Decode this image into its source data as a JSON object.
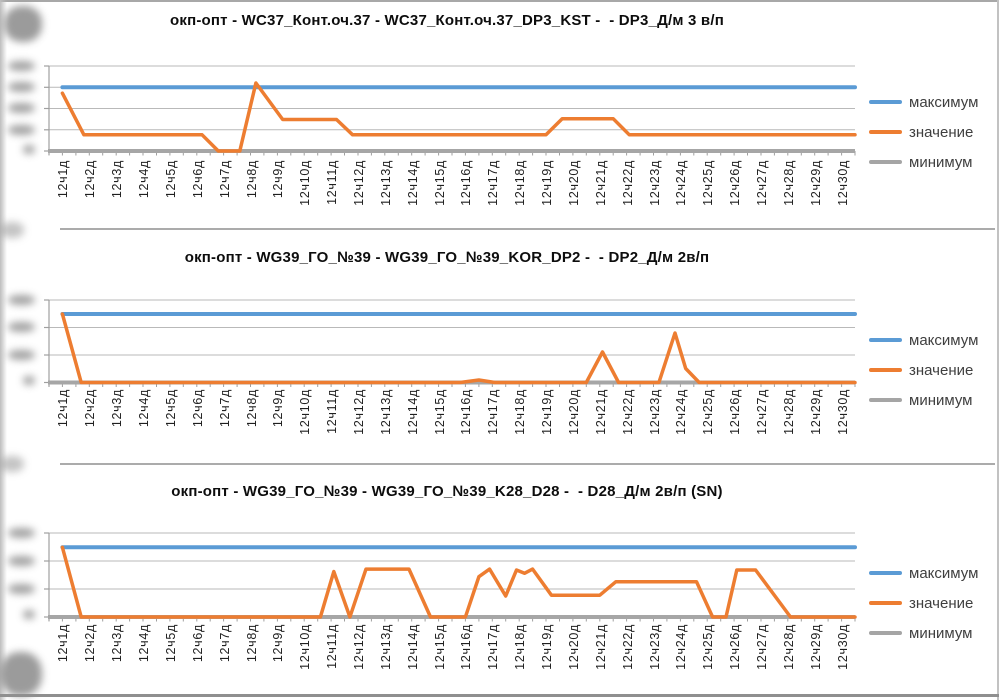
{
  "chart_data": [
    {
      "type": "line",
      "title": "окп-опт - WC37_Конт.оч.37 - WC37_Конт.оч.37_DP3_KST -  - DP3_Д/м 3 в/п",
      "categories": [
        "12ч1д",
        "12ч2д",
        "12ч3д",
        "12ч4д",
        "12ч5д",
        "12ч6д",
        "12ч7д",
        "12ч8д",
        "12ч9д",
        "12ч10д",
        "12ч11д",
        "12ч12д",
        "12ч13д",
        "12ч14д",
        "12ч15д",
        "12ч16д",
        "12ч17д",
        "12ч18д",
        "12ч19д",
        "12ч20д",
        "12ч21д",
        "12ч22д",
        "12ч23д",
        "12ч24д",
        "12ч25д",
        "12ч26д",
        "12ч27д",
        "12ч28д",
        "12ч29д",
        "12ч30д"
      ],
      "x_unit": "category index (12чNд)",
      "ylim": [
        0,
        100
      ],
      "y_tick_labels": "blurred/illegible in screenshot",
      "gridlines": 5,
      "legend_position": "right",
      "series": [
        {
          "name": "максимум",
          "color": "#5B9BD5",
          "points": [
            [
              1,
              75
            ],
            [
              30,
              75
            ]
          ]
        },
        {
          "name": "значение",
          "color": "#ED7D31",
          "points": [
            [
              1,
              68
            ],
            [
              1.8,
              19
            ],
            [
              6.2,
              19
            ],
            [
              6.8,
              0
            ],
            [
              7.6,
              0
            ],
            [
              8.2,
              80
            ],
            [
              9.2,
              37
            ],
            [
              11.2,
              37
            ],
            [
              11.8,
              19
            ],
            [
              19,
              19
            ],
            [
              19.6,
              38
            ],
            [
              21.5,
              38
            ],
            [
              22.1,
              19
            ],
            [
              30,
              19
            ]
          ]
        },
        {
          "name": "минимум",
          "color": "#A5A5A5",
          "points": [
            [
              1,
              0
            ],
            [
              30,
              0
            ]
          ]
        }
      ]
    },
    {
      "type": "line",
      "title": "окп-опт - WG39_ГО_№39 - WG39_ГО_№39_KOR_DP2 -  - DP2_Д/м 2в/п",
      "categories": [
        "12ч1д",
        "12ч2д",
        "12ч3д",
        "12ч4д",
        "12ч5д",
        "12ч6д",
        "12ч7д",
        "12ч8д",
        "12ч9д",
        "12ч10д",
        "12ч11д",
        "12ч12д",
        "12ч13д",
        "12ч14д",
        "12ч15д",
        "12ч16д",
        "12ч17д",
        "12ч18д",
        "12ч19д",
        "12ч20д",
        "12ч21д",
        "12ч22д",
        "12ч23д",
        "12ч24д",
        "12ч25д",
        "12ч26д",
        "12ч27д",
        "12ч28д",
        "12ч29д",
        "12ч30д"
      ],
      "x_unit": "category index (12чNд)",
      "ylim": [
        0,
        100
      ],
      "y_tick_labels": "blurred/illegible in screenshot",
      "gridlines": 4,
      "legend_position": "right",
      "series": [
        {
          "name": "максимум",
          "color": "#5B9BD5",
          "points": [
            [
              1,
              83
            ],
            [
              30,
              83
            ]
          ]
        },
        {
          "name": "значение",
          "color": "#ED7D31",
          "points": [
            [
              1,
              83
            ],
            [
              1.7,
              0
            ],
            [
              15.8,
              0
            ],
            [
              16.5,
              3
            ],
            [
              17.1,
              0
            ],
            [
              20.5,
              0
            ],
            [
              21.1,
              37
            ],
            [
              21.7,
              0
            ],
            [
              23.2,
              0
            ],
            [
              23.8,
              60
            ],
            [
              24.2,
              17
            ],
            [
              24.7,
              0
            ],
            [
              30,
              0
            ]
          ]
        },
        {
          "name": "минимум",
          "color": "#A5A5A5",
          "points": [
            [
              1,
              0
            ],
            [
              30,
              0
            ]
          ]
        }
      ]
    },
    {
      "type": "line",
      "title": "окп-опт - WG39_ГО_№39 - WG39_ГО_№39_K28_D28 -  - D28_Д/м 2в/п (SN)",
      "categories": [
        "12ч1д",
        "12ч2д",
        "12ч3д",
        "12ч4д",
        "12ч5д",
        "12ч6д",
        "12ч7д",
        "12ч8д",
        "12ч9д",
        "12ч10д",
        "12ч11д",
        "12ч12д",
        "12ч13д",
        "12ч14д",
        "12ч15д",
        "12ч16д",
        "12ч17д",
        "12ч18д",
        "12ч19д",
        "12ч20д",
        "12ч21д",
        "12ч22д",
        "12ч23д",
        "12ч24д",
        "12ч25д",
        "12ч26д",
        "12ч27д",
        "12ч28д",
        "12ч29д",
        "12ч30д"
      ],
      "x_unit": "category index (12чNд)",
      "ylim": [
        0,
        100
      ],
      "y_tick_labels": "blurred/illegible in screenshot",
      "gridlines": 4,
      "legend_position": "right",
      "series": [
        {
          "name": "максимум",
          "color": "#5B9BD5",
          "points": [
            [
              1,
              83
            ],
            [
              30,
              83
            ]
          ]
        },
        {
          "name": "значение",
          "color": "#ED7D31",
          "points": [
            [
              1,
              83
            ],
            [
              1.7,
              0
            ],
            [
              10.6,
              0
            ],
            [
              11.1,
              54
            ],
            [
              11.7,
              0
            ],
            [
              12.3,
              57
            ],
            [
              13.9,
              57
            ],
            [
              14.7,
              0
            ],
            [
              16,
              0
            ],
            [
              16.5,
              48
            ],
            [
              16.9,
              57
            ],
            [
              17.5,
              25
            ],
            [
              17.9,
              56
            ],
            [
              18.2,
              52
            ],
            [
              18.5,
              57
            ],
            [
              19.2,
              26
            ],
            [
              21,
              26
            ],
            [
              21.6,
              42
            ],
            [
              24.6,
              42
            ],
            [
              25.2,
              0
            ],
            [
              25.7,
              0
            ],
            [
              26.1,
              56
            ],
            [
              26.8,
              56
            ],
            [
              28.1,
              0
            ],
            [
              30,
              0
            ]
          ]
        },
        {
          "name": "минимум",
          "color": "#A5A5A5",
          "points": [
            [
              1,
              0
            ],
            [
              30,
              0
            ]
          ]
        }
      ]
    }
  ]
}
